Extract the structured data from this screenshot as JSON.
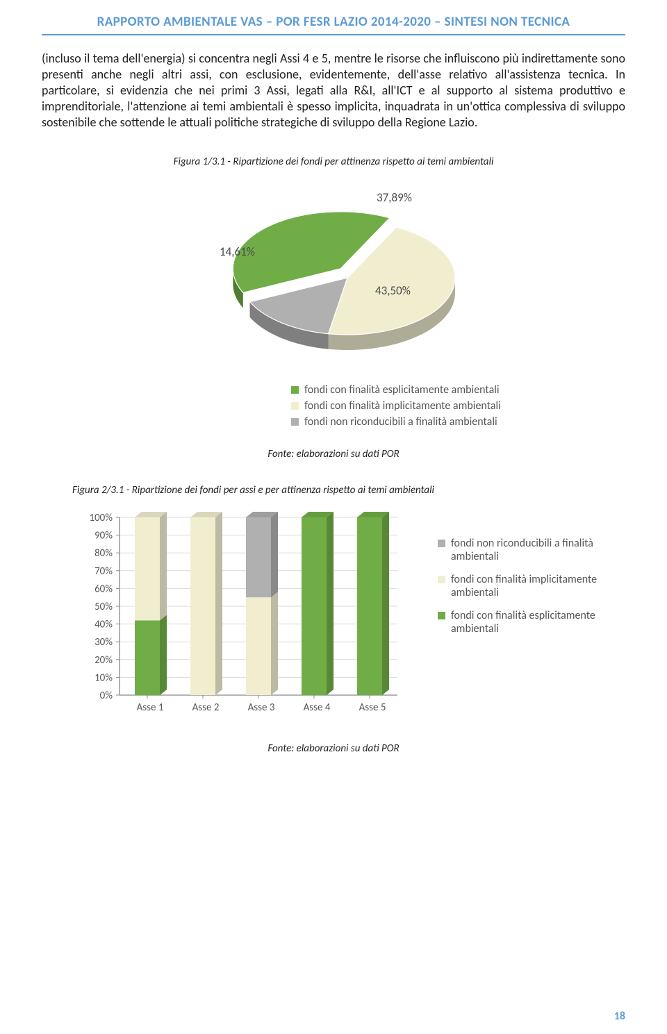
{
  "header": "RAPPORTO AMBIENTALE VAS – POR FESR LAZIO 2014-2020 – SINTESI NON TECNICA",
  "body_text": "(incluso il tema dell'energia) si concentra negli Assi 4 e 5, mentre le risorse che influiscono più indirettamente sono presenti anche negli altri assi, con esclusione, evidentemente, dell'asse relativo all'assistenza tecnica. In particolare, si evidenzia che nei primi 3 Assi, legati alla R&I, all'ICT e al supporto al sistema produttivo e imprenditoriale, l'attenzione ai temi ambientali è spesso implicita, inquadrata in un'ottica complessiva di sviluppo sostenibile che sottende le attuali politiche strategiche di sviluppo della Regione Lazio.",
  "figure1": {
    "caption": "Figura 1/3.1 - Ripartizione dei fondi per attinenza rispetto ai temi ambientali",
    "source": "Fonte: elaborazioni su dati POR",
    "type": "pie3d",
    "background_color": "#ffffff",
    "label_fontsize": 17,
    "label_color": "#4a4a4a",
    "slices": [
      {
        "label": "37,89%",
        "value": 37.89,
        "color": "#70ad47",
        "legend": "fondi con finalità esplicitamente ambientali"
      },
      {
        "label": "43,50%",
        "value": 43.5,
        "color": "#f1eed0",
        "legend": "fondi con finalità implicitamente ambientali"
      },
      {
        "label": "14,61%",
        "value": 14.61,
        "color": "#b0b0b0",
        "legend": "fondi non riconducibili a finalità ambientali"
      }
    ],
    "legend_fontsize": 16,
    "legend_color": "#555555"
  },
  "figure2": {
    "caption": "Figura 2/3.1 - Ripartizione dei fondi per assi e per attinenza rispetto ai temi ambientali",
    "source": "Fonte: elaborazioni su dati POR",
    "type": "stacked_bar",
    "categories": [
      "Asse 1",
      "Asse 2",
      "Asse 3",
      "Asse 4",
      "Asse 5"
    ],
    "ylim": [
      0,
      100
    ],
    "ytick_step": 10,
    "ytick_suffix": "%",
    "bar_width_ratio": 0.45,
    "axis_color": "#888888",
    "grid_color": "#d9d9d9",
    "label_fontsize": 15,
    "label_color": "#555555",
    "series": [
      {
        "key": "esplicitamente",
        "color": "#70ad47",
        "legend": "fondi con finalità esplicitamente ambientali",
        "values": [
          42,
          0,
          0,
          100,
          100
        ]
      },
      {
        "key": "implicitamente",
        "color": "#f1eed0",
        "legend": "fondi con finalità implicitamente ambientali",
        "values": [
          58,
          100,
          55,
          0,
          0
        ]
      },
      {
        "key": "non_riconducibili",
        "color": "#b0b0b0",
        "legend": "fondi non riconducibili a finalità ambientali",
        "values": [
          0,
          0,
          45,
          0,
          0
        ]
      }
    ],
    "legend_order": [
      "non_riconducibili",
      "implicitamente",
      "esplicitamente"
    ],
    "legend_fontsize": 16,
    "legend_color": "#555555"
  },
  "page_number": "18"
}
